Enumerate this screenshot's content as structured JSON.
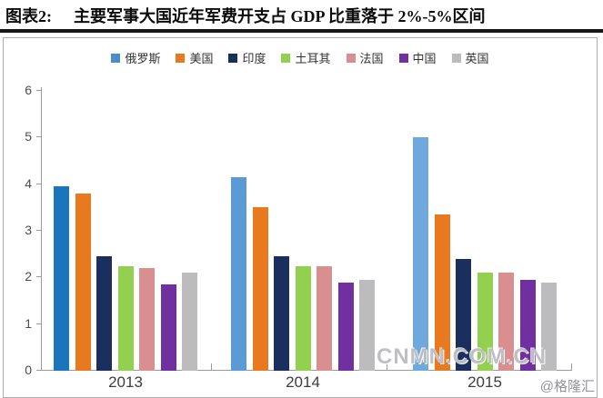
{
  "title": {
    "prefix": "图表2:",
    "text": "主要军事大国近年军费开支占 GDP 比重落于 2%-5%区间"
  },
  "watermarks": {
    "center": "CNMN.COM.CN",
    "source": "@格隆汇"
  },
  "chart_data": {
    "type": "bar",
    "title": "主要军事大国近年军费开支占 GDP 比重落于 2%-5%区间",
    "categories": [
      "2013",
      "2014",
      "2015"
    ],
    "series": [
      {
        "name": "俄罗斯",
        "color": "#4a8fc8",
        "colors": [
          "#1b75bc",
          "#5b9bd5",
          "#6fa8dc"
        ],
        "values": [
          3.95,
          4.15,
          5.0
        ]
      },
      {
        "name": "美国",
        "color": "#e8791e",
        "values": [
          3.8,
          3.5,
          3.35
        ]
      },
      {
        "name": "印度",
        "color": "#1a2f5e",
        "values": [
          2.45,
          2.45,
          2.4
        ]
      },
      {
        "name": "土耳其",
        "color": "#92d050",
        "values": [
          2.25,
          2.25,
          2.1
        ]
      },
      {
        "name": "法国",
        "color": "#d98e90",
        "values": [
          2.2,
          2.25,
          2.1
        ]
      },
      {
        "name": "中国",
        "color": "#7030a0",
        "values": [
          1.85,
          1.9,
          1.95
        ]
      },
      {
        "name": "英国",
        "color": "#bcbcbf",
        "values": [
          2.1,
          1.95,
          1.9
        ]
      }
    ],
    "xlabel": "",
    "ylabel": "",
    "ylim": [
      0,
      6
    ],
    "yticks": [
      0,
      1,
      2,
      3,
      4,
      5,
      6
    ],
    "grid": false,
    "legend_position": "top"
  }
}
